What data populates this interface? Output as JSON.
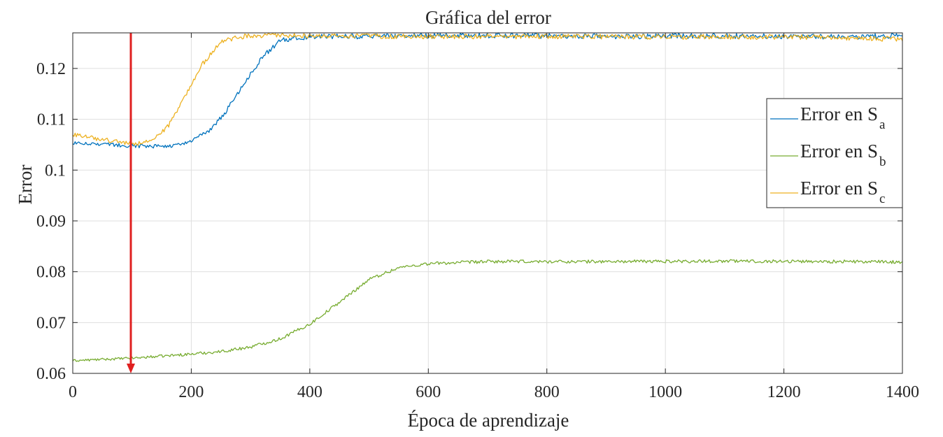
{
  "chart_data": {
    "type": "line",
    "title": "Gráfica del error",
    "xlabel": "Época de aprendizaje",
    "ylabel": "Error",
    "xlim": [
      0,
      1400
    ],
    "ylim": [
      0.06,
      0.127
    ],
    "xticks": [
      0,
      200,
      400,
      600,
      800,
      1000,
      1200,
      1400
    ],
    "xtick_labels": [
      "0",
      "200",
      "400",
      "600",
      "800",
      "1000",
      "1200",
      "1400"
    ],
    "yticks": [
      0.06,
      0.07,
      0.08,
      0.09,
      0.1,
      0.11,
      0.12
    ],
    "ytick_labels": [
      "0.06",
      "0.07",
      "0.08",
      "0.09",
      "0.1",
      "0.11",
      "0.12"
    ],
    "grid": true,
    "legend_position": "right",
    "series": [
      {
        "key": "sa",
        "label_main": "Error en S",
        "label_sub": "a",
        "color": "#0072BD",
        "noise": 0.0005,
        "x": [
          0,
          50,
          100,
          130,
          170,
          200,
          230,
          260,
          290,
          320,
          350,
          400,
          500,
          700,
          900,
          1100,
          1300,
          1400
        ],
        "y": [
          0.1053,
          0.1051,
          0.1048,
          0.1047,
          0.1048,
          0.1056,
          0.1077,
          0.1118,
          0.117,
          0.1222,
          0.1255,
          0.1263,
          0.1263,
          0.1265,
          0.1263,
          0.1264,
          0.1262,
          0.1265
        ]
      },
      {
        "key": "sb",
        "label_main": "Error en S",
        "label_sub": "b",
        "color": "#77AC30",
        "noise": 0.00032,
        "x": [
          0,
          100,
          200,
          250,
          300,
          350,
          400,
          450,
          500,
          550,
          600,
          700,
          900,
          1100,
          1300,
          1400
        ],
        "y": [
          0.0625,
          0.063,
          0.0638,
          0.0643,
          0.0652,
          0.0668,
          0.0697,
          0.074,
          0.0785,
          0.0808,
          0.0816,
          0.082,
          0.082,
          0.0821,
          0.082,
          0.0819
        ]
      },
      {
        "key": "sc",
        "label_main": "Error en S",
        "label_sub": "c",
        "color": "#EDB120",
        "noise": 0.0005,
        "x": [
          0,
          50,
          100,
          130,
          160,
          190,
          220,
          250,
          280,
          320,
          400,
          600,
          800,
          1000,
          1200,
          1400
        ],
        "y": [
          0.107,
          0.106,
          0.1052,
          0.1055,
          0.1085,
          0.1145,
          0.121,
          0.1252,
          0.1262,
          0.1265,
          0.1264,
          0.1263,
          0.1263,
          0.1262,
          0.1262,
          0.1258
        ]
      }
    ],
    "annotation": {
      "type": "arrow",
      "color": "#E02020",
      "x": 98,
      "y_from": 0.127,
      "y_to": 0.06
    }
  }
}
